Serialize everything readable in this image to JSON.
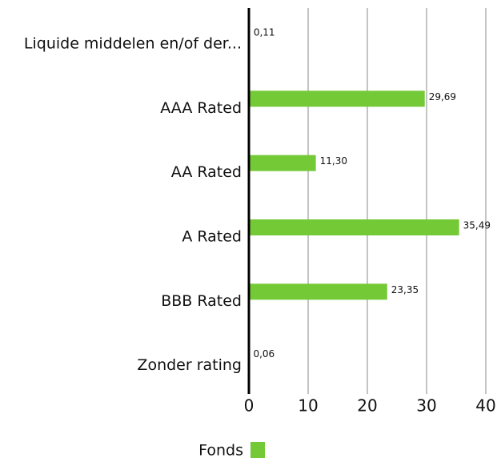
{
  "chart_data": {
    "type": "bar",
    "orientation": "horizontal",
    "categories": [
      "Liquide middelen en/of der...",
      "AAA Rated",
      "AA Rated",
      "A Rated",
      "BBB Rated",
      "Zonder rating"
    ],
    "series": [
      {
        "name": "Fonds",
        "color": "#74c936",
        "values": [
          0.11,
          29.69,
          11.3,
          35.49,
          23.35,
          0.06
        ],
        "value_labels": [
          "0,11",
          "29,69",
          "11,30",
          "35,49",
          "23,35",
          "0,06"
        ]
      }
    ],
    "xlim": [
      0,
      40
    ],
    "xticks": [
      0,
      10,
      20,
      30,
      40
    ],
    "grid": true,
    "legend": "bottom"
  }
}
